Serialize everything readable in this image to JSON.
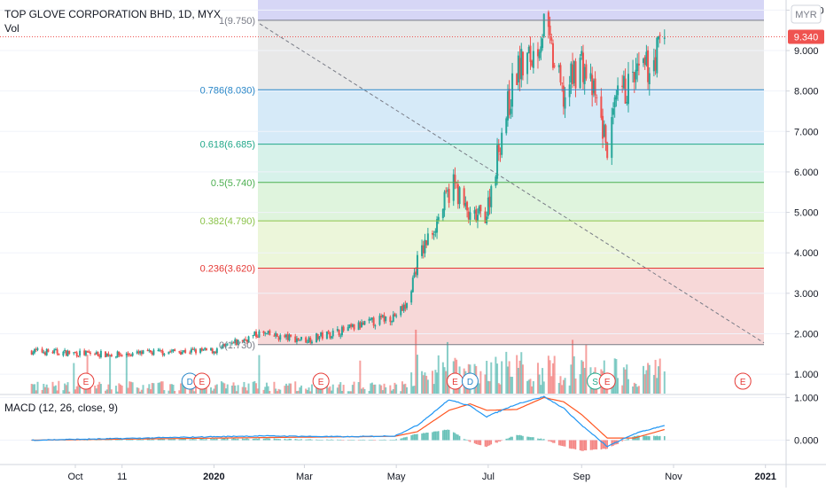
{
  "header": {
    "symbol_title": "TOP GLOVE CORPORATION BHD, 1D, MYX",
    "vol_label": "Vol"
  },
  "price_axis": {
    "currency_badge": "MYR",
    "ticks": [
      10,
      9,
      8,
      7,
      6,
      5,
      4,
      3,
      2,
      1
    ],
    "tick_labels": [
      "10.000",
      "9.000",
      "8.000",
      "7.000",
      "6.000",
      "5.000",
      "4.000",
      "3.000",
      "2.000",
      "1.000"
    ],
    "range": [
      0.52,
      10.25
    ],
    "last_price": 9.34,
    "last_price_label": "9.340"
  },
  "macd_panel": {
    "label": "MACD (12, 26, close, 9)",
    "ticks": [
      1,
      0
    ],
    "tick_labels": [
      "1.000",
      "0.000"
    ],
    "range": [
      -0.55,
      1.05
    ]
  },
  "time_axis": {
    "tick_labels": [
      "Oct",
      "11",
      "2020",
      "Mar",
      "May",
      "Jul",
      "Sep",
      "Nov",
      "2021"
    ],
    "tick_bold": [
      false,
      false,
      true,
      false,
      false,
      false,
      false,
      false,
      true
    ]
  },
  "fibonacci": {
    "levels": [
      {
        "ratio": 1,
        "price": 9.75,
        "label": "1(9.750)",
        "color": "#787b86",
        "fill": "#e6e6e6"
      },
      {
        "ratio": 0.786,
        "price": 8.03,
        "label": "0.786(8.030)",
        "color": "#2a87c8",
        "fill": "#d2e8f7"
      },
      {
        "ratio": 0.618,
        "price": 6.685,
        "label": "0.618(6.685)",
        "color": "#22a88a",
        "fill": "#d3f1e8"
      },
      {
        "ratio": 0.5,
        "price": 5.74,
        "label": "0.5(5.740)",
        "color": "#4caf50",
        "fill": "#dcf3d9"
      },
      {
        "ratio": 0.382,
        "price": 4.79,
        "label": "0.382(4.790)",
        "color": "#8bc34a",
        "fill": "#eaf5d6"
      },
      {
        "ratio": 0.236,
        "price": 3.62,
        "label": "0.236(3.620)",
        "color": "#e53935",
        "fill": "#f6d4d4"
      },
      {
        "ratio": 0,
        "price": 1.73,
        "label": "0(1.730)",
        "color": "#787b86",
        "fill": "#f6d4d4"
      }
    ],
    "top_band_fill": "#cfcff5",
    "trend_line_color": "#787b86"
  },
  "events": [
    {
      "label": "E",
      "color": "#e53935"
    },
    {
      "label": "D",
      "color": "#2a87c8"
    },
    {
      "label": "E",
      "color": "#e53935"
    },
    {
      "label": "E",
      "color": "#e53935"
    },
    {
      "label": "E",
      "color": "#e53935"
    },
    {
      "label": "D",
      "color": "#2a87c8"
    },
    {
      "label": "S",
      "color": "#22a88a"
    },
    {
      "label": "E",
      "color": "#e53935"
    },
    {
      "label": "E",
      "color": "#e53935"
    }
  ],
  "colors": {
    "up": "#26a69a",
    "down": "#ef5350",
    "macd_line": "#2196f3",
    "signal_line": "#ff5722",
    "grid": "#f0f3fa",
    "axis_text": "#131722",
    "badge_bg": "#ef5350"
  },
  "chart_data": {
    "type": "candlestick",
    "title": "TOP GLOVE CORPORATION BHD, 1D, MYX",
    "x_axis": [
      "Oct",
      "11",
      "2020",
      "Mar",
      "May",
      "Jul",
      "Sep",
      "Nov",
      "2021"
    ],
    "y_range": [
      0.52,
      10.25
    ],
    "series": [
      {
        "name": "TOP GLOVE CORPORATION BHD",
        "points": [
          {
            "date": "2019-09-02",
            "close": 1.57
          },
          {
            "date": "2019-10-01",
            "close": 1.52
          },
          {
            "date": "2019-11-01",
            "close": 1.48
          },
          {
            "date": "2019-12-02",
            "close": 1.56
          },
          {
            "date": "2020-01-02",
            "close": 1.58
          },
          {
            "date": "2020-01-31",
            "close": 2.0
          },
          {
            "date": "2020-02-14",
            "close": 1.92
          },
          {
            "date": "2020-03-02",
            "close": 1.85
          },
          {
            "date": "2020-03-31",
            "close": 2.12
          },
          {
            "date": "2020-04-30",
            "close": 2.45
          },
          {
            "date": "2020-05-08",
            "close": 2.7
          },
          {
            "date": "2020-05-15",
            "close": 3.8
          },
          {
            "date": "2020-05-28",
            "close": 4.8
          },
          {
            "date": "2020-06-08",
            "close": 5.75
          },
          {
            "date": "2020-06-19",
            "close": 4.8
          },
          {
            "date": "2020-06-30",
            "close": 5.0
          },
          {
            "date": "2020-07-10",
            "close": 7.0
          },
          {
            "date": "2020-07-20",
            "close": 8.5
          },
          {
            "date": "2020-07-31",
            "close": 8.9
          },
          {
            "date": "2020-08-07",
            "close": 9.6
          },
          {
            "date": "2020-08-20",
            "close": 7.8
          },
          {
            "date": "2020-08-31",
            "close": 8.8
          },
          {
            "date": "2020-09-11",
            "close": 7.7
          },
          {
            "date": "2020-09-18",
            "close": 6.6
          },
          {
            "date": "2020-09-25",
            "close": 7.8
          },
          {
            "date": "2020-10-06",
            "close": 8.3
          },
          {
            "date": "2020-10-16",
            "close": 8.6
          },
          {
            "date": "2020-10-26",
            "close": 9.34
          }
        ]
      }
    ],
    "volume_visible": true,
    "indicators": [
      {
        "name": "MACD (12, 26, close, 9)",
        "range": [
          -0.55,
          1.05
        ],
        "macd": [
          {
            "date": "2019-09-02",
            "value": 0.0
          },
          {
            "date": "2020-01-31",
            "value": 0.1
          },
          {
            "date": "2020-03-31",
            "value": 0.08
          },
          {
            "date": "2020-04-30",
            "value": 0.1
          },
          {
            "date": "2020-05-15",
            "value": 0.35
          },
          {
            "date": "2020-06-05",
            "value": 0.95
          },
          {
            "date": "2020-06-19",
            "value": 0.8
          },
          {
            "date": "2020-06-30",
            "value": 0.55
          },
          {
            "date": "2020-07-20",
            "value": 0.85
          },
          {
            "date": "2020-08-07",
            "value": 1.02
          },
          {
            "date": "2020-08-20",
            "value": 0.75
          },
          {
            "date": "2020-09-01",
            "value": 0.35
          },
          {
            "date": "2020-09-18",
            "value": -0.15
          },
          {
            "date": "2020-10-06",
            "value": 0.15
          },
          {
            "date": "2020-10-26",
            "value": 0.35
          }
        ],
        "signal": [
          {
            "date": "2019-09-02",
            "value": 0.0
          },
          {
            "date": "2020-01-31",
            "value": 0.06
          },
          {
            "date": "2020-03-31",
            "value": 0.08
          },
          {
            "date": "2020-04-30",
            "value": 0.09
          },
          {
            "date": "2020-05-15",
            "value": 0.2
          },
          {
            "date": "2020-06-05",
            "value": 0.7
          },
          {
            "date": "2020-06-19",
            "value": 0.85
          },
          {
            "date": "2020-06-30",
            "value": 0.7
          },
          {
            "date": "2020-07-20",
            "value": 0.72
          },
          {
            "date": "2020-08-07",
            "value": 1.0
          },
          {
            "date": "2020-08-20",
            "value": 0.9
          },
          {
            "date": "2020-09-01",
            "value": 0.6
          },
          {
            "date": "2020-09-18",
            "value": 0.05
          },
          {
            "date": "2020-10-06",
            "value": 0.05
          },
          {
            "date": "2020-10-26",
            "value": 0.25
          }
        ]
      }
    ]
  }
}
